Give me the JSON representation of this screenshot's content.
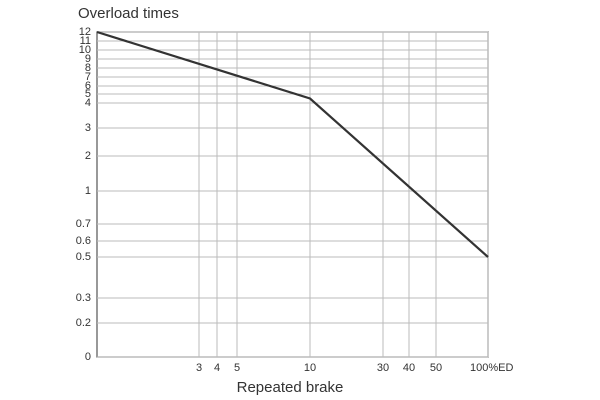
{
  "chart_data": {
    "type": "line",
    "title": "Overload times",
    "x_label": "Repeated brake",
    "x": [
      1,
      10,
      100
    ],
    "series": [
      {
        "name": "Overload",
        "color": "#333333",
        "values": [
          12,
          4.5,
          0.5
        ]
      }
    ],
    "xlim": [
      1,
      100
    ],
    "xticks": [
      3,
      4,
      5,
      10,
      30,
      40,
      50,
      {
        "value": 100,
        "label": "100%ED"
      }
    ],
    "ylim": [
      0,
      12
    ],
    "yticks": [
      0,
      0.2,
      0.3,
      0.5,
      0.6,
      0.7,
      1,
      2,
      3,
      4,
      5,
      6,
      7,
      8,
      9,
      10,
      11,
      12
    ],
    "grid": true
  }
}
